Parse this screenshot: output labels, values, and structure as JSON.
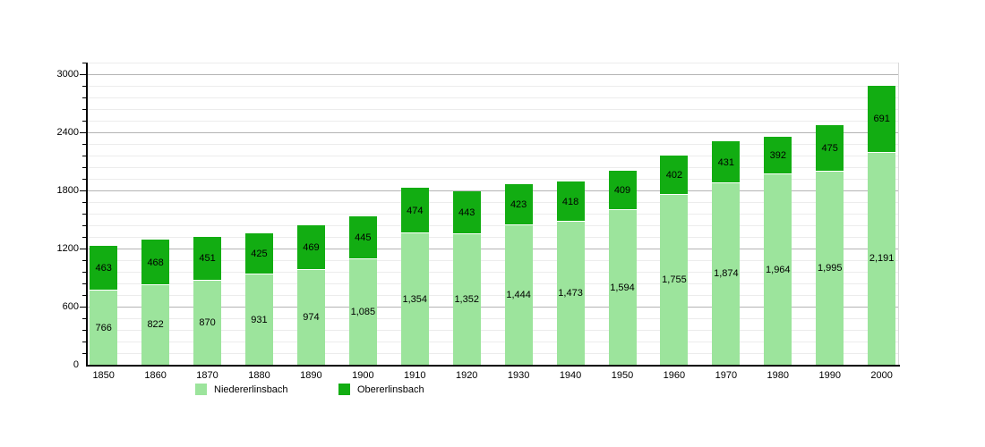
{
  "chart_data": {
    "type": "bar",
    "stacked": true,
    "title": "",
    "xlabel": "",
    "ylabel": "",
    "categories": [
      "1850",
      "1860",
      "1870",
      "1880",
      "1890",
      "1900",
      "1910",
      "1920",
      "1930",
      "1940",
      "1950",
      "1960",
      "1970",
      "1980",
      "1990",
      "2000"
    ],
    "series": [
      {
        "name": "Niedererlinsbach",
        "color": "#9CE49C",
        "values": [
          766,
          822,
          870,
          931,
          974,
          1085,
          1354,
          1352,
          1444,
          1473,
          1594,
          1755,
          1874,
          1964,
          1995,
          2191
        ]
      },
      {
        "name": "Obererlinsbach",
        "color": "#12AD12",
        "values": [
          463,
          468,
          451,
          425,
          469,
          445,
          474,
          443,
          423,
          418,
          409,
          402,
          431,
          392,
          475,
          691
        ]
      }
    ],
    "bar_labels_visible": true,
    "ylim": [
      0,
      3120
    ],
    "y_major_ticks": [
      0,
      600,
      1200,
      1800,
      2400,
      3000
    ],
    "y_minor_step": 120,
    "grid": true,
    "legend_position": "bottom",
    "colors": {
      "axis": "#000000",
      "grid_minor": "#ececec",
      "grid_major": "#b4b4b4",
      "label_text": "#000000"
    }
  }
}
